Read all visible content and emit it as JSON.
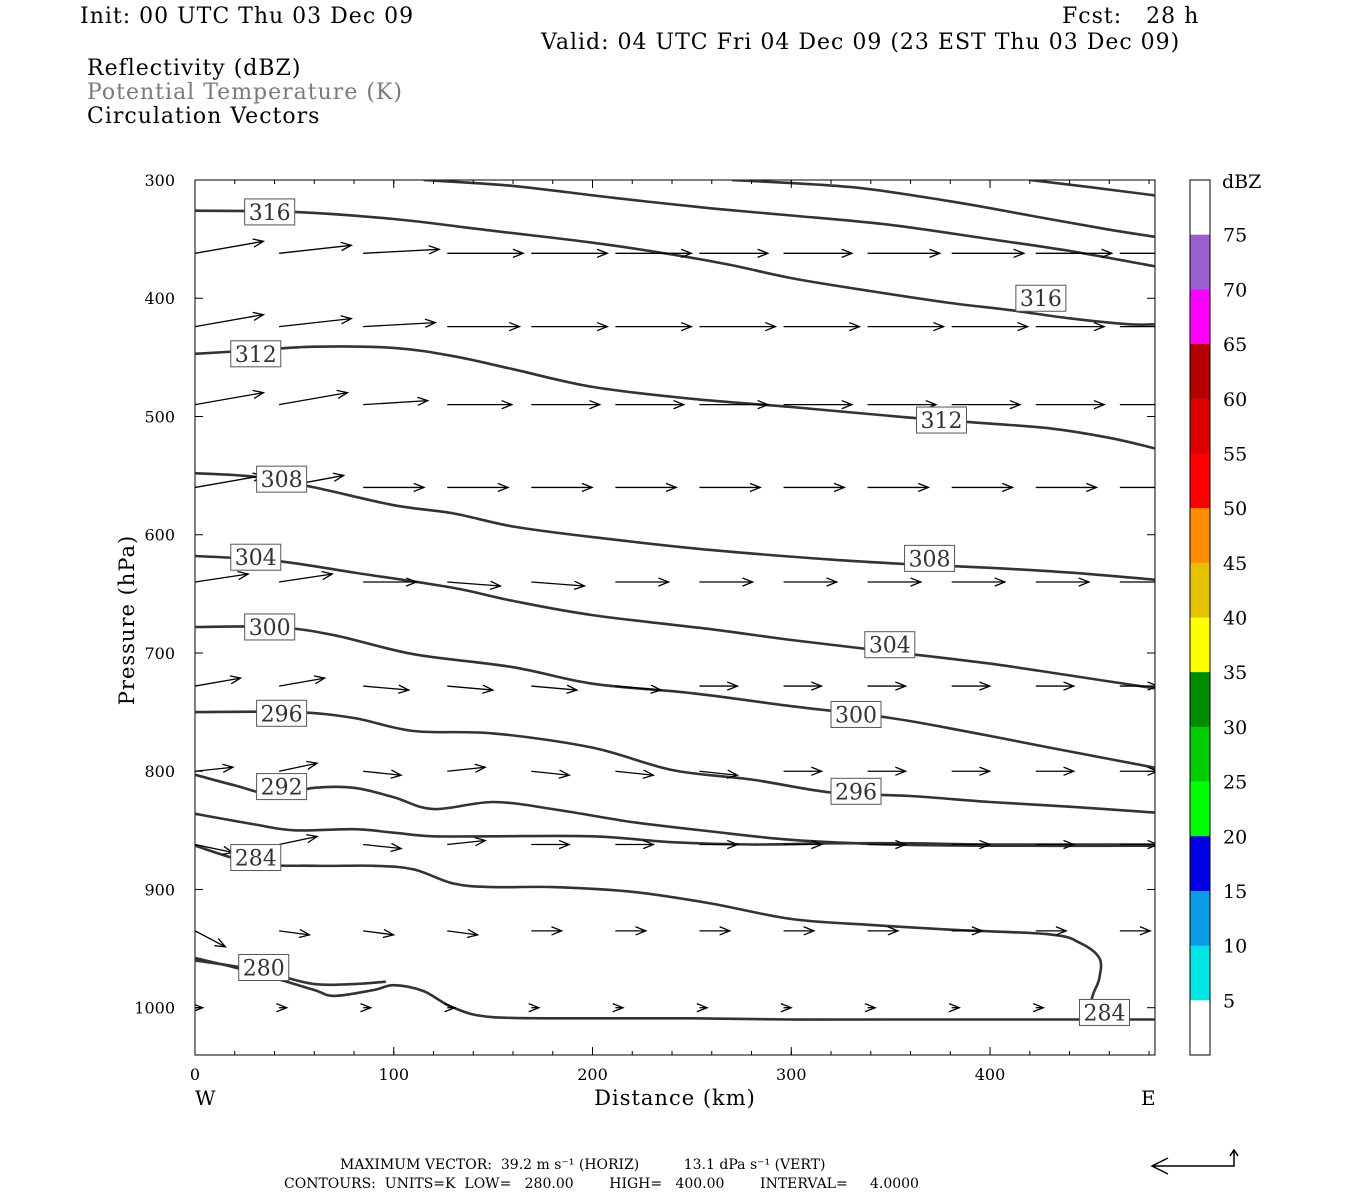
{
  "header": {
    "init": "Init: 00 UTC Thu 03 Dec 09",
    "fcst": "Fcst:   28 h",
    "valid": "Valid: 04 UTC Fri 04 Dec 09 (23 EST Thu 03 Dec 09)"
  },
  "fields": {
    "reflectivity": "Reflectivity (dBZ)",
    "theta": "Potential Temperature (K)",
    "vectors": "Circulation Vectors"
  },
  "footer": {
    "max_vector": "MAXIMUM VECTOR:  39.2 m s⁻¹ (HORIZ)          13.1 dPa s⁻¹ (VERT)",
    "contours": "CONTOURS:  UNITS=K  LOW=   280.00        HIGH=   400.00        INTERVAL=     4.0000"
  },
  "colors": {
    "contour": "#333333",
    "vector": "#000000",
    "colorbar": [
      "#ffffff",
      "#00e5e5",
      "#0a9ae6",
      "#0000e6",
      "#00ff00",
      "#00cc00",
      "#008c00",
      "#ffff00",
      "#e6c300",
      "#ff8c00",
      "#ff0000",
      "#dc0000",
      "#b40000",
      "#ff00ff",
      "#9c5fd1",
      "#ffffff"
    ]
  },
  "chart_data": {
    "type": "contour+vector cross-section",
    "xlabel": "Distance (km)",
    "ylabel": "Pressure (hPa)",
    "xlim": [
      0,
      483
    ],
    "ylim": [
      1040,
      300
    ],
    "x_ticks": [
      "0",
      "100",
      "200",
      "300",
      "400"
    ],
    "y_ticks": [
      "300",
      "400",
      "500",
      "600",
      "700",
      "800",
      "900",
      "1000"
    ],
    "x_end_labels": {
      "left": "W",
      "right": "E"
    },
    "colorbar": {
      "title": "dBZ",
      "labels": [
        "5",
        "10",
        "15",
        "20",
        "25",
        "30",
        "35",
        "40",
        "45",
        "50",
        "55",
        "60",
        "65",
        "70",
        "75"
      ]
    },
    "theta_contours": [
      {
        "value": 316,
        "pts": [
          [
            0,
            326
          ],
          [
            50,
            327
          ],
          [
            100,
            333
          ],
          [
            150,
            343
          ],
          [
            200,
            353
          ],
          [
            240,
            363
          ],
          [
            270,
            372
          ],
          [
            300,
            383
          ],
          [
            340,
            394
          ],
          [
            380,
            404
          ],
          [
            410,
            410
          ],
          [
            440,
            417
          ],
          [
            470,
            422
          ],
          [
            483,
            422
          ]
        ]
      },
      {
        "value": 320,
        "pts": [
          [
            115,
            300
          ],
          [
            160,
            305
          ],
          [
            210,
            315
          ],
          [
            260,
            324
          ],
          [
            300,
            330
          ],
          [
            350,
            338
          ],
          [
            400,
            350
          ],
          [
            440,
            360
          ],
          [
            483,
            373
          ]
        ]
      },
      {
        "value": 324,
        "pts": [
          [
            270,
            300
          ],
          [
            330,
            306
          ],
          [
            380,
            318
          ],
          [
            420,
            330
          ],
          [
            460,
            342
          ],
          [
            483,
            348
          ]
        ]
      },
      {
        "value": 328,
        "pts": [
          [
            420,
            300
          ],
          [
            450,
            306
          ],
          [
            483,
            313
          ]
        ]
      },
      {
        "value": 312,
        "pts": [
          [
            0,
            447
          ],
          [
            30,
            444
          ],
          [
            60,
            441
          ],
          [
            100,
            442
          ],
          [
            130,
            449
          ],
          [
            160,
            460
          ],
          [
            200,
            475
          ],
          [
            250,
            485
          ],
          [
            300,
            492
          ],
          [
            360,
            501
          ],
          [
            400,
            506
          ],
          [
            430,
            510
          ],
          [
            460,
            518
          ],
          [
            483,
            527
          ]
        ]
      },
      {
        "value": 308,
        "pts": [
          [
            0,
            548
          ],
          [
            30,
            551
          ],
          [
            60,
            560
          ],
          [
            100,
            575
          ],
          [
            130,
            582
          ],
          [
            160,
            593
          ],
          [
            200,
            602
          ],
          [
            260,
            613
          ],
          [
            320,
            621
          ],
          [
            360,
            625
          ],
          [
            400,
            628
          ],
          [
            440,
            632
          ],
          [
            483,
            638
          ]
        ]
      },
      {
        "value": 304,
        "pts": [
          [
            0,
            618
          ],
          [
            40,
            622
          ],
          [
            80,
            632
          ],
          [
            130,
            645
          ],
          [
            160,
            656
          ],
          [
            200,
            668
          ],
          [
            260,
            680
          ],
          [
            300,
            689
          ],
          [
            350,
            699
          ],
          [
            400,
            709
          ],
          [
            440,
            719
          ],
          [
            483,
            730
          ]
        ]
      },
      {
        "value": 300,
        "pts": [
          [
            0,
            678
          ],
          [
            40,
            678
          ],
          [
            70,
            685
          ],
          [
            110,
            701
          ],
          [
            160,
            712
          ],
          [
            200,
            726
          ],
          [
            250,
            734
          ],
          [
            300,
            745
          ],
          [
            350,
            755
          ],
          [
            390,
            767
          ],
          [
            430,
            780
          ],
          [
            483,
            797
          ]
        ]
      },
      {
        "value": 296,
        "pts": [
          [
            0,
            750
          ],
          [
            50,
            750
          ],
          [
            80,
            755
          ],
          [
            110,
            766
          ],
          [
            150,
            768
          ],
          [
            200,
            780
          ],
          [
            240,
            799
          ],
          [
            280,
            807
          ],
          [
            320,
            818
          ],
          [
            360,
            821
          ],
          [
            400,
            826
          ],
          [
            440,
            830
          ],
          [
            483,
            835
          ]
        ]
      },
      {
        "value": 292,
        "pts": [
          [
            0,
            803
          ],
          [
            20,
            812
          ],
          [
            40,
            820
          ],
          [
            60,
            814
          ],
          [
            80,
            814
          ],
          [
            100,
            822
          ],
          [
            120,
            832
          ],
          [
            150,
            826
          ],
          [
            180,
            832
          ],
          [
            220,
            843
          ],
          [
            260,
            851
          ],
          [
            300,
            858
          ],
          [
            350,
            862
          ],
          [
            400,
            863
          ],
          [
            483,
            863
          ]
        ]
      },
      {
        "value": 288,
        "pts": [
          [
            0,
            836
          ],
          [
            30,
            845
          ],
          [
            50,
            850
          ],
          [
            80,
            849
          ],
          [
            100,
            852
          ],
          [
            120,
            855
          ],
          [
            150,
            855
          ],
          [
            200,
            855
          ],
          [
            240,
            860
          ],
          [
            280,
            862
          ],
          [
            320,
            861
          ],
          [
            360,
            861
          ],
          [
            400,
            862
          ],
          [
            483,
            862
          ]
        ]
      },
      {
        "value": 284,
        "pts": [
          [
            0,
            863
          ],
          [
            30,
            878
          ],
          [
            60,
            880
          ],
          [
            90,
            880
          ],
          [
            110,
            883
          ],
          [
            130,
            895
          ],
          [
            150,
            898
          ],
          [
            180,
            898
          ],
          [
            220,
            902
          ],
          [
            260,
            912
          ],
          [
            300,
            925
          ],
          [
            340,
            930
          ],
          [
            380,
            934
          ],
          [
            430,
            938
          ],
          [
            445,
            945
          ],
          [
            455,
            958
          ],
          [
            455,
            975
          ],
          [
            452,
            988
          ],
          [
            450,
            1000
          ]
        ]
      },
      {
        "value": 284,
        "pts": [
          [
            0,
            958
          ],
          [
            20,
            966
          ],
          [
            40,
            975
          ],
          [
            60,
            985
          ],
          [
            70,
            990
          ],
          [
            90,
            985
          ],
          [
            100,
            981
          ],
          [
            115,
            986
          ],
          [
            130,
            1000
          ],
          [
            150,
            1008
          ],
          [
            200,
            1009
          ],
          [
            250,
            1009
          ],
          [
            300,
            1010
          ],
          [
            350,
            1010
          ],
          [
            400,
            1010
          ],
          [
            483,
            1010
          ]
        ]
      },
      {
        "value": 280,
        "pts": [
          [
            0,
            960
          ],
          [
            20,
            965
          ],
          [
            40,
            972
          ],
          [
            60,
            980
          ],
          [
            80,
            980
          ],
          [
            96,
            978
          ]
        ]
      }
    ],
    "contour_labels": [
      {
        "text": "316",
        "x": 25,
        "p": 327
      },
      {
        "text": "316",
        "x": 413,
        "p": 400
      },
      {
        "text": "312",
        "x": 18,
        "p": 447
      },
      {
        "text": "312",
        "x": 363,
        "p": 503
      },
      {
        "text": "308",
        "x": 31,
        "p": 553
      },
      {
        "text": "308",
        "x": 357,
        "p": 620
      },
      {
        "text": "304",
        "x": 18,
        "p": 619
      },
      {
        "text": "304",
        "x": 337,
        "p": 693
      },
      {
        "text": "300",
        "x": 25,
        "p": 678
      },
      {
        "text": "300",
        "x": 320,
        "p": 752
      },
      {
        "text": "296",
        "x": 31,
        "p": 751
      },
      {
        "text": "296",
        "x": 320,
        "p": 817
      },
      {
        "text": "292",
        "x": 31,
        "p": 813
      },
      {
        "text": "284",
        "x": 18,
        "p": 873
      },
      {
        "text": "280",
        "x": 22,
        "p": 966
      },
      {
        "text": "284",
        "x": 445,
        "p": 1004
      }
    ],
    "vectors": {
      "note": "u in m/s (horizontal), w component in dPa/s; arrows drawn on grid",
      "rows": [
        {
          "p": 362,
          "u": [
            18,
            19,
            20,
            20,
            20,
            20,
            18,
            18,
            19,
            19,
            20,
            22,
            24
          ],
          "v": [
            -3,
            -2,
            -1,
            0,
            0,
            0,
            0,
            0,
            0,
            0,
            0,
            0,
            0
          ]
        },
        {
          "p": 424,
          "u": [
            18,
            19,
            19,
            19,
            20,
            20,
            20,
            20,
            20,
            20,
            18,
            18,
            16
          ],
          "v": [
            -3,
            -2,
            -1,
            0,
            0,
            0,
            0,
            0,
            0,
            0,
            0,
            0,
            0
          ]
        },
        {
          "p": 490,
          "u": [
            18,
            18,
            17,
            17,
            18,
            18,
            18,
            18,
            18,
            18,
            18,
            18,
            16
          ],
          "v": [
            -3,
            -3,
            -1,
            0,
            0,
            0,
            0,
            0,
            0,
            0,
            0,
            0,
            0
          ]
        },
        {
          "p": 560,
          "u": [
            18,
            17,
            16,
            16,
            16,
            16,
            16,
            16,
            16,
            16,
            16,
            16,
            16
          ],
          "v": [
            -3,
            -3,
            0,
            0,
            0,
            0,
            0,
            0,
            0,
            0,
            0,
            0,
            0
          ]
        },
        {
          "p": 640,
          "u": [
            14,
            14,
            14,
            14,
            14,
            14,
            14,
            14,
            14,
            14,
            14,
            12,
            14
          ],
          "v": [
            -2,
            -2,
            0,
            1,
            1,
            0,
            0,
            0,
            0,
            0,
            0,
            0,
            0
          ]
        },
        {
          "p": 728,
          "u": [
            12,
            12,
            12,
            12,
            12,
            12,
            10,
            10,
            10,
            10,
            10,
            10,
            10
          ],
          "v": [
            -2,
            -2,
            1,
            1,
            1,
            1,
            0,
            0,
            0,
            0,
            0,
            0,
            0
          ]
        },
        {
          "p": 800,
          "u": [
            10,
            10,
            10,
            10,
            10,
            10,
            10,
            10,
            10,
            10,
            10,
            10,
            10
          ],
          "v": [
            -1,
            -2,
            1,
            -1,
            1,
            1,
            1,
            0,
            0,
            0,
            0,
            0,
            0
          ]
        },
        {
          "p": 862,
          "u": [
            10,
            10,
            10,
            10,
            10,
            10,
            10,
            10,
            10,
            10,
            10,
            10,
            10
          ],
          "v": [
            2,
            -2,
            1,
            -1,
            0,
            0,
            0,
            0,
            0,
            0,
            0,
            0,
            0
          ]
        },
        {
          "p": 935,
          "u": [
            8,
            8,
            8,
            8,
            8,
            8,
            8,
            8,
            8,
            8,
            8,
            8,
            8
          ],
          "v": [
            4,
            1,
            1,
            1,
            0,
            0,
            0,
            0,
            0,
            0,
            0,
            0,
            0
          ]
        },
        {
          "p": 1000,
          "u": [
            2,
            2,
            2,
            2,
            2,
            2,
            2,
            2,
            2,
            2,
            2,
            2,
            2
          ],
          "v": [
            0,
            0,
            0,
            0,
            0,
            0,
            0,
            0,
            0,
            0,
            0,
            0,
            0
          ]
        }
      ]
    }
  }
}
